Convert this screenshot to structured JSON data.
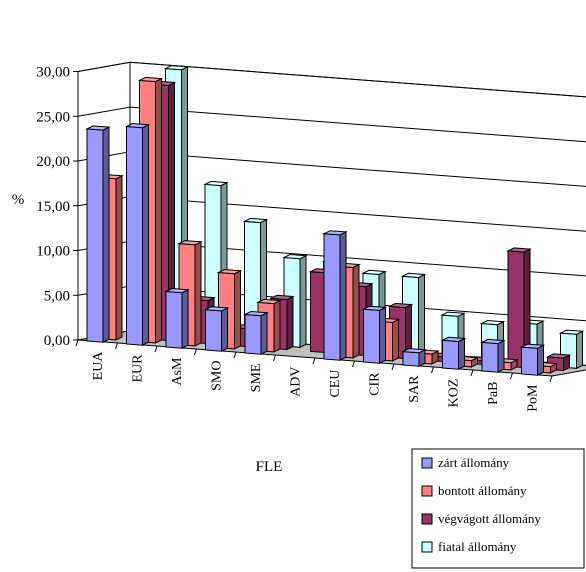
{
  "chart_data": {
    "type": "bar",
    "view": "3d",
    "categories": [
      "EUA",
      "EUR",
      "AsM",
      "SMO",
      "SME",
      "ADV",
      "CEU",
      "CIR",
      "SAR",
      "KOZ",
      "PaB",
      "PoM"
    ],
    "series": [
      {
        "name": "zárt állomány",
        "color": "#9999ff",
        "values": [
          23.7,
          24.3,
          6.2,
          4.5,
          4.3,
          0.0,
          14.0,
          5.9,
          1.5,
          3.1,
          3.2,
          3.0
        ]
      },
      {
        "name": "bontott állomány",
        "color": "#ff8080",
        "values": [
          18.0,
          29.2,
          11.3,
          8.4,
          5.4,
          0.0,
          10.1,
          4.3,
          1.1,
          0.7,
          0.8,
          0.7
        ]
      },
      {
        "name": "végvágott állomány",
        "color": "#993366",
        "values": [
          0.0,
          28.5,
          4.8,
          2.0,
          5.6,
          8.9,
          7.7,
          5.7,
          0.5,
          0.4,
          12.9,
          1.4
        ]
      },
      {
        "name": "fiatal állomány",
        "color": "#ccffff",
        "values": [
          0.0,
          30.0,
          17.4,
          13.6,
          9.9,
          9.8,
          8.8,
          8.8,
          4.8,
          4.2,
          4.6,
          3.8
        ]
      }
    ],
    "ylabel": "%",
    "xlabel": "FLE",
    "ylim": [
      0,
      30
    ],
    "yticks": [
      "0,00",
      "5,00",
      "10,00",
      "15,00",
      "20,00",
      "25,00",
      "30,00"
    ],
    "grid": true,
    "legend_position": "bottom-right"
  }
}
